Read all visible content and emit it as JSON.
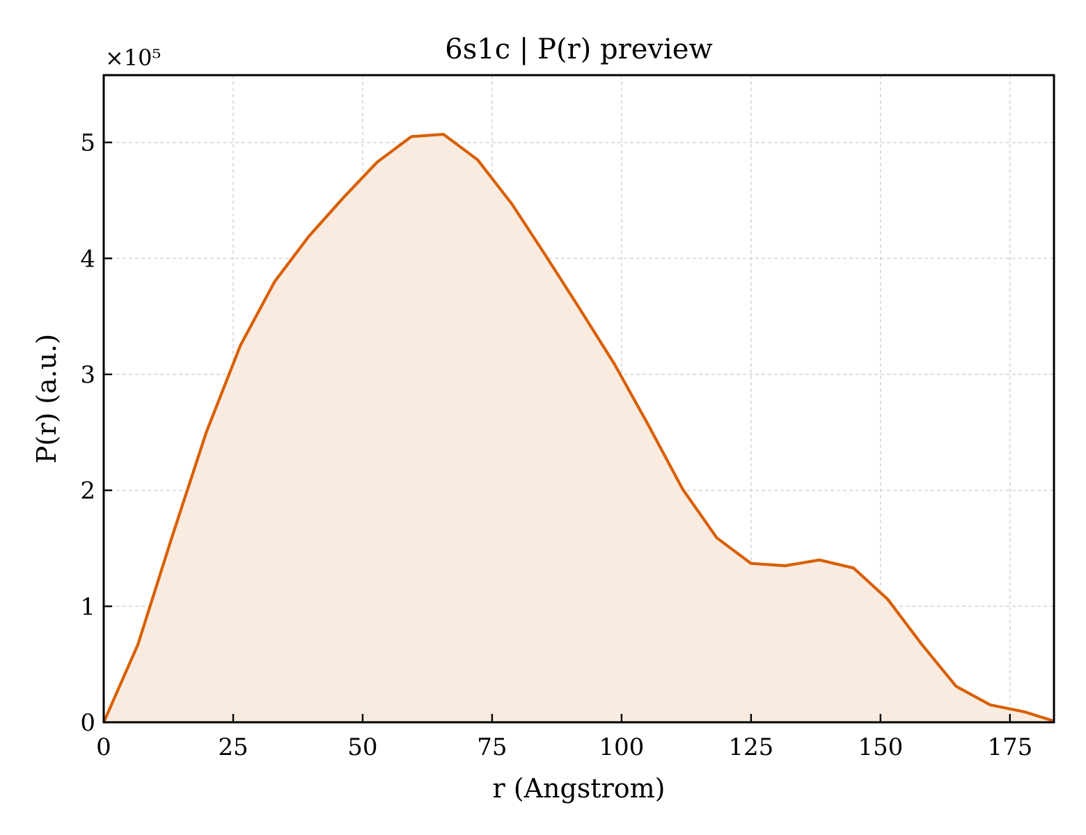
{
  "chart_data": {
    "type": "area",
    "title": "6s1c | P(r) preview",
    "xlabel": "r (Angstrom)",
    "ylabel": "P(r) (a.u.)",
    "y_offset_label": "×10⁵",
    "xlim": [
      0,
      183.5
    ],
    "ylim": [
      0,
      5.58
    ],
    "x_ticks": [
      0,
      25,
      50,
      75,
      100,
      125,
      150,
      175
    ],
    "y_ticks": [
      0,
      1,
      2,
      3,
      4,
      5
    ],
    "grid": true,
    "line_color": "#d95f02",
    "fill_color": "#f9ebe0",
    "series": [
      {
        "x": [
          0,
          6.6,
          13.2,
          19.8,
          26.4,
          33.0,
          39.6,
          46.2,
          52.8,
          59.4,
          65.6,
          72.2,
          78.8,
          85.4,
          92.0,
          98.6,
          105.2,
          111.8,
          118.4,
          125.0,
          131.6,
          138.2,
          144.8,
          151.4,
          158.0,
          164.6,
          171.2,
          177.8,
          183.5
        ],
        "y": [
          0,
          0.67,
          1.6,
          2.5,
          3.25,
          3.8,
          4.19,
          4.52,
          4.83,
          5.05,
          5.07,
          4.85,
          4.47,
          4.02,
          3.56,
          3.09,
          2.56,
          2.01,
          1.59,
          1.37,
          1.35,
          1.4,
          1.33,
          1.06,
          0.67,
          0.31,
          0.15,
          0.09,
          0.01
        ]
      }
    ]
  }
}
